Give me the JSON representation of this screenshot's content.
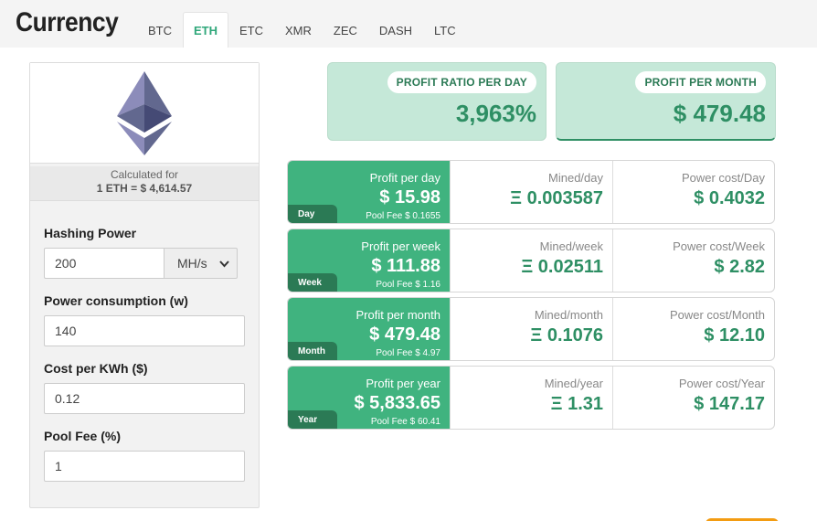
{
  "header": {
    "title": "Currency"
  },
  "tabs": [
    {
      "label": "BTC",
      "active": false
    },
    {
      "label": "ETH",
      "active": true
    },
    {
      "label": "ETC",
      "active": false
    },
    {
      "label": "XMR",
      "active": false
    },
    {
      "label": "ZEC",
      "active": false
    },
    {
      "label": "DASH",
      "active": false
    },
    {
      "label": "LTC",
      "active": false
    }
  ],
  "coin": {
    "logo_icon": "ethereum-logo-icon",
    "calculated_for": "Calculated for",
    "rate": "1 ETH = $ 4,614.57"
  },
  "form": {
    "hashing_power": {
      "label": "Hashing Power",
      "value": "200",
      "unit": "MH/s"
    },
    "power_consumption": {
      "label": "Power consumption (w)",
      "value": "140"
    },
    "cost_per_kwh": {
      "label": "Cost per KWh ($)",
      "value": "0.12"
    },
    "pool_fee": {
      "label": "Pool Fee (%)",
      "value": "1"
    }
  },
  "summary": {
    "profit_ratio": {
      "label": "PROFIT RATIO PER DAY",
      "value": "3,963%"
    },
    "profit_month": {
      "label": "PROFIT PER MONTH",
      "value": "$ 479.48"
    }
  },
  "periods": [
    {
      "tag": "Day",
      "profit_label": "Profit per day",
      "profit": "$ 15.98",
      "pool_fee": "Pool Fee $ 0.1655",
      "mined_label": "Mined/day",
      "mined": "Ξ 0.003587",
      "power_label": "Power cost/Day",
      "power": "$ 0.4032"
    },
    {
      "tag": "Week",
      "profit_label": "Profit per week",
      "profit": "$ 111.88",
      "pool_fee": "Pool Fee $ 1.16",
      "mined_label": "Mined/week",
      "mined": "Ξ 0.02511",
      "power_label": "Power cost/Week",
      "power": "$ 2.82"
    },
    {
      "tag": "Month",
      "profit_label": "Profit per month",
      "profit": "$ 479.48",
      "pool_fee": "Pool Fee $ 4.97",
      "mined_label": "Mined/month",
      "mined": "Ξ 0.1076",
      "power_label": "Power cost/Month",
      "power": "$ 12.10"
    },
    {
      "tag": "Year",
      "profit_label": "Profit per year",
      "profit": "$ 5,833.65",
      "pool_fee": "Pool Fee $ 60.41",
      "mined_label": "Mined/year",
      "mined": "Ξ 1.31",
      "power_label": "Power cost/Year",
      "power": "$ 147.17"
    }
  ],
  "colors": {
    "accent": "#40b37f",
    "accent_dark": "#2b7a55",
    "summary_bg": "#c5e8d8",
    "value_green": "#2e8f64"
  }
}
